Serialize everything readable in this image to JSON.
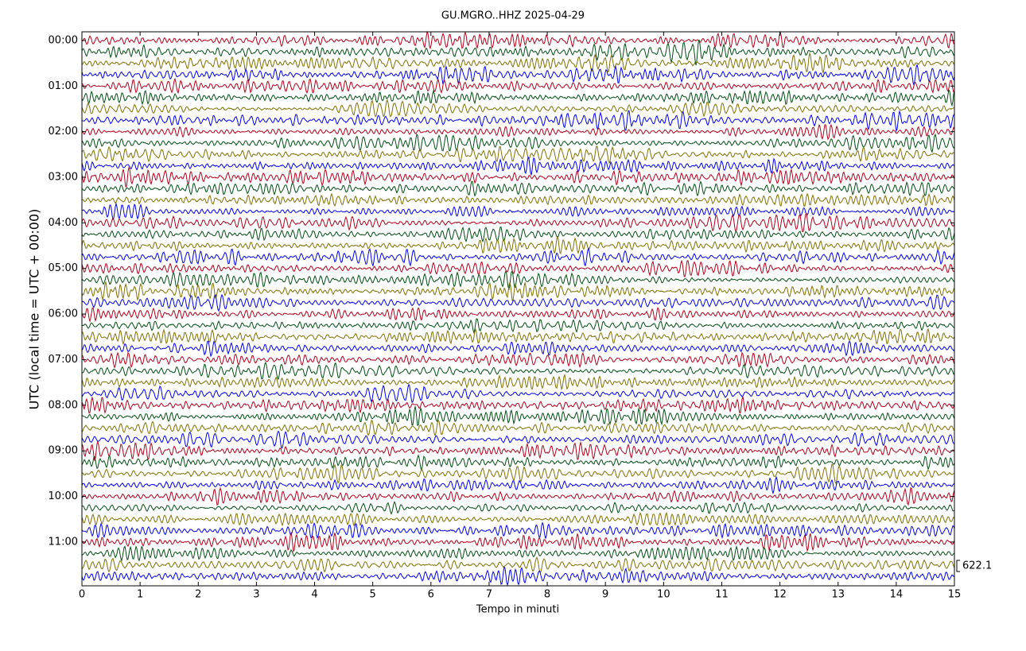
{
  "chart_data": {
    "type": "helicorder",
    "title": "GU.MGRO..HHZ 2025-04-29",
    "xlabel": "Tempo in minuti",
    "ylabel": "UTC (local time = UTC + 00:00)",
    "xlim": [
      0,
      15
    ],
    "xticks": [
      0,
      1,
      2,
      3,
      4,
      5,
      6,
      7,
      8,
      9,
      10,
      11,
      12,
      13,
      14,
      15
    ],
    "ylim": [
      11.96,
      -0.19
    ],
    "yticks": [
      {
        "value": 0,
        "label": "00:00"
      },
      {
        "value": 1,
        "label": "01:00"
      },
      {
        "value": 2,
        "label": "02:00"
      },
      {
        "value": 3,
        "label": "03:00"
      },
      {
        "value": 4,
        "label": "04:00"
      },
      {
        "value": 5,
        "label": "05:00"
      },
      {
        "value": 6,
        "label": "06:00"
      },
      {
        "value": 7,
        "label": "07:00"
      },
      {
        "value": 8,
        "label": "08:00"
      },
      {
        "value": 9,
        "label": "09:00"
      },
      {
        "value": 10,
        "label": "10:00"
      },
      {
        "value": 11,
        "label": "11:00"
      }
    ],
    "trace_colors": [
      "#b0001a",
      "#004d12",
      "#7f7000",
      "#0000e6"
    ],
    "trace_starts": [
      0,
      0.25,
      0.5,
      0.75,
      1,
      1.25,
      1.5,
      1.75,
      2,
      2.25,
      2.5,
      2.75,
      3,
      3.25,
      3.5,
      3.75,
      4,
      4.25,
      4.5,
      4.75,
      5,
      5.25,
      5.5,
      5.75,
      6,
      6.25,
      6.5,
      6.75,
      7,
      7.25,
      7.5,
      7.75,
      8,
      8.25,
      8.5,
      8.75,
      9,
      9.25,
      9.5,
      9.75,
      10,
      10.25,
      10.5,
      10.75,
      11,
      11.25,
      11.5,
      11.75
    ],
    "scale": 622.1
  }
}
